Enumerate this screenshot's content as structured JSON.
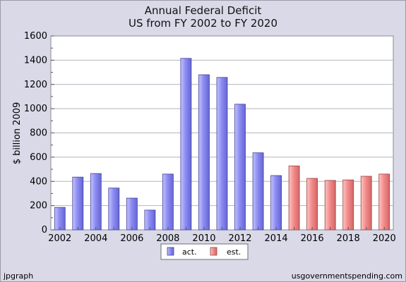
{
  "chart_data": {
    "type": "bar",
    "title": "Annual Federal Deficit",
    "subtitle": "US from FY 2002 to FY 2020",
    "ylabel": "$ billion 2009",
    "xlabel": "",
    "ylim": [
      0,
      1600
    ],
    "yticks": [
      0,
      200,
      400,
      600,
      800,
      1000,
      1200,
      1400,
      1600
    ],
    "grid": true,
    "legend_position": "bottom-center",
    "x": [
      2002,
      2003,
      2004,
      2005,
      2006,
      2007,
      2008,
      2009,
      2010,
      2011,
      2012,
      2013,
      2014,
      2015,
      2016,
      2017,
      2018,
      2019,
      2020
    ],
    "xtick_labels": [
      "2002",
      "2004",
      "2006",
      "2008",
      "2010",
      "2012",
      "2014",
      "2016",
      "2018",
      "2020"
    ],
    "series": [
      {
        "name": "act.",
        "color": "#8a8aee",
        "x": [
          2002,
          2003,
          2004,
          2005,
          2006,
          2007,
          2008,
          2009,
          2010,
          2011,
          2012,
          2013,
          2014
        ],
        "values": [
          185,
          435,
          465,
          345,
          262,
          163,
          460,
          1415,
          1280,
          1258,
          1037,
          636,
          448
        ]
      },
      {
        "name": "est.",
        "color": "#f08a8a",
        "x": [
          2015,
          2016,
          2017,
          2018,
          2019,
          2020
        ],
        "values": [
          528,
          425,
          408,
          412,
          442,
          460
        ]
      }
    ]
  },
  "footer": {
    "left": "jpgraph",
    "right": "usgovernmentspending.com"
  }
}
